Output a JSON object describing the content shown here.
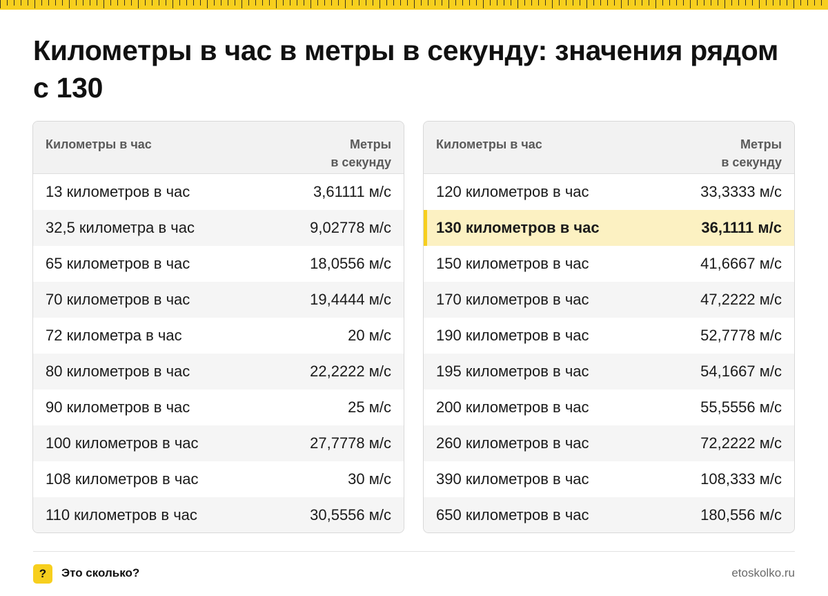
{
  "title": "Километры в час в метры в секунду: значения рядом с 130",
  "accent_color": "#f7cf1e",
  "highlight_color": "#fcf1c2",
  "columns": {
    "from_label": "Километры в час",
    "to_label_line1": "Метры",
    "to_label_line2": "в секунду"
  },
  "left_rows": [
    {
      "from": "13 километров в час",
      "to": "3,61111 м/с"
    },
    {
      "from": "32,5 километра в час",
      "to": "9,02778 м/с"
    },
    {
      "from": "65 километров в час",
      "to": "18,0556 м/с"
    },
    {
      "from": "70 километров в час",
      "to": "19,4444 м/с"
    },
    {
      "from": "72 километра в час",
      "to": "20 м/с"
    },
    {
      "from": "80 километров в час",
      "to": "22,2222 м/с"
    },
    {
      "from": "90 километров в час",
      "to": "25 м/с"
    },
    {
      "from": "100 километров в час",
      "to": "27,7778 м/с"
    },
    {
      "from": "108 километров в час",
      "to": "30 м/с"
    },
    {
      "from": "110 километров в час",
      "to": "30,5556 м/с"
    }
  ],
  "right_rows": [
    {
      "from": "120 километров в час",
      "to": "33,3333 м/с"
    },
    {
      "from": "130 километров в час",
      "to": "36,1111 м/с",
      "highlighted": true
    },
    {
      "from": "150 километров в час",
      "to": "41,6667 м/с"
    },
    {
      "from": "170 километров в час",
      "to": "47,2222 м/с"
    },
    {
      "from": "190 километров в час",
      "to": "52,7778 м/с"
    },
    {
      "from": "195 километров в час",
      "to": "54,1667 м/с"
    },
    {
      "from": "200 километров в час",
      "to": "55,5556 м/с"
    },
    {
      "from": "260 километров в час",
      "to": "72,2222 м/с"
    },
    {
      "from": "390 километров в час",
      "to": "108,333 м/с"
    },
    {
      "from": "650 километров в час",
      "to": "180,556 м/с"
    }
  ],
  "footer": {
    "icon_glyph": "?",
    "icon_name": "question-mark-icon",
    "brand": "Это сколько?",
    "site": "etoskolko.ru"
  }
}
